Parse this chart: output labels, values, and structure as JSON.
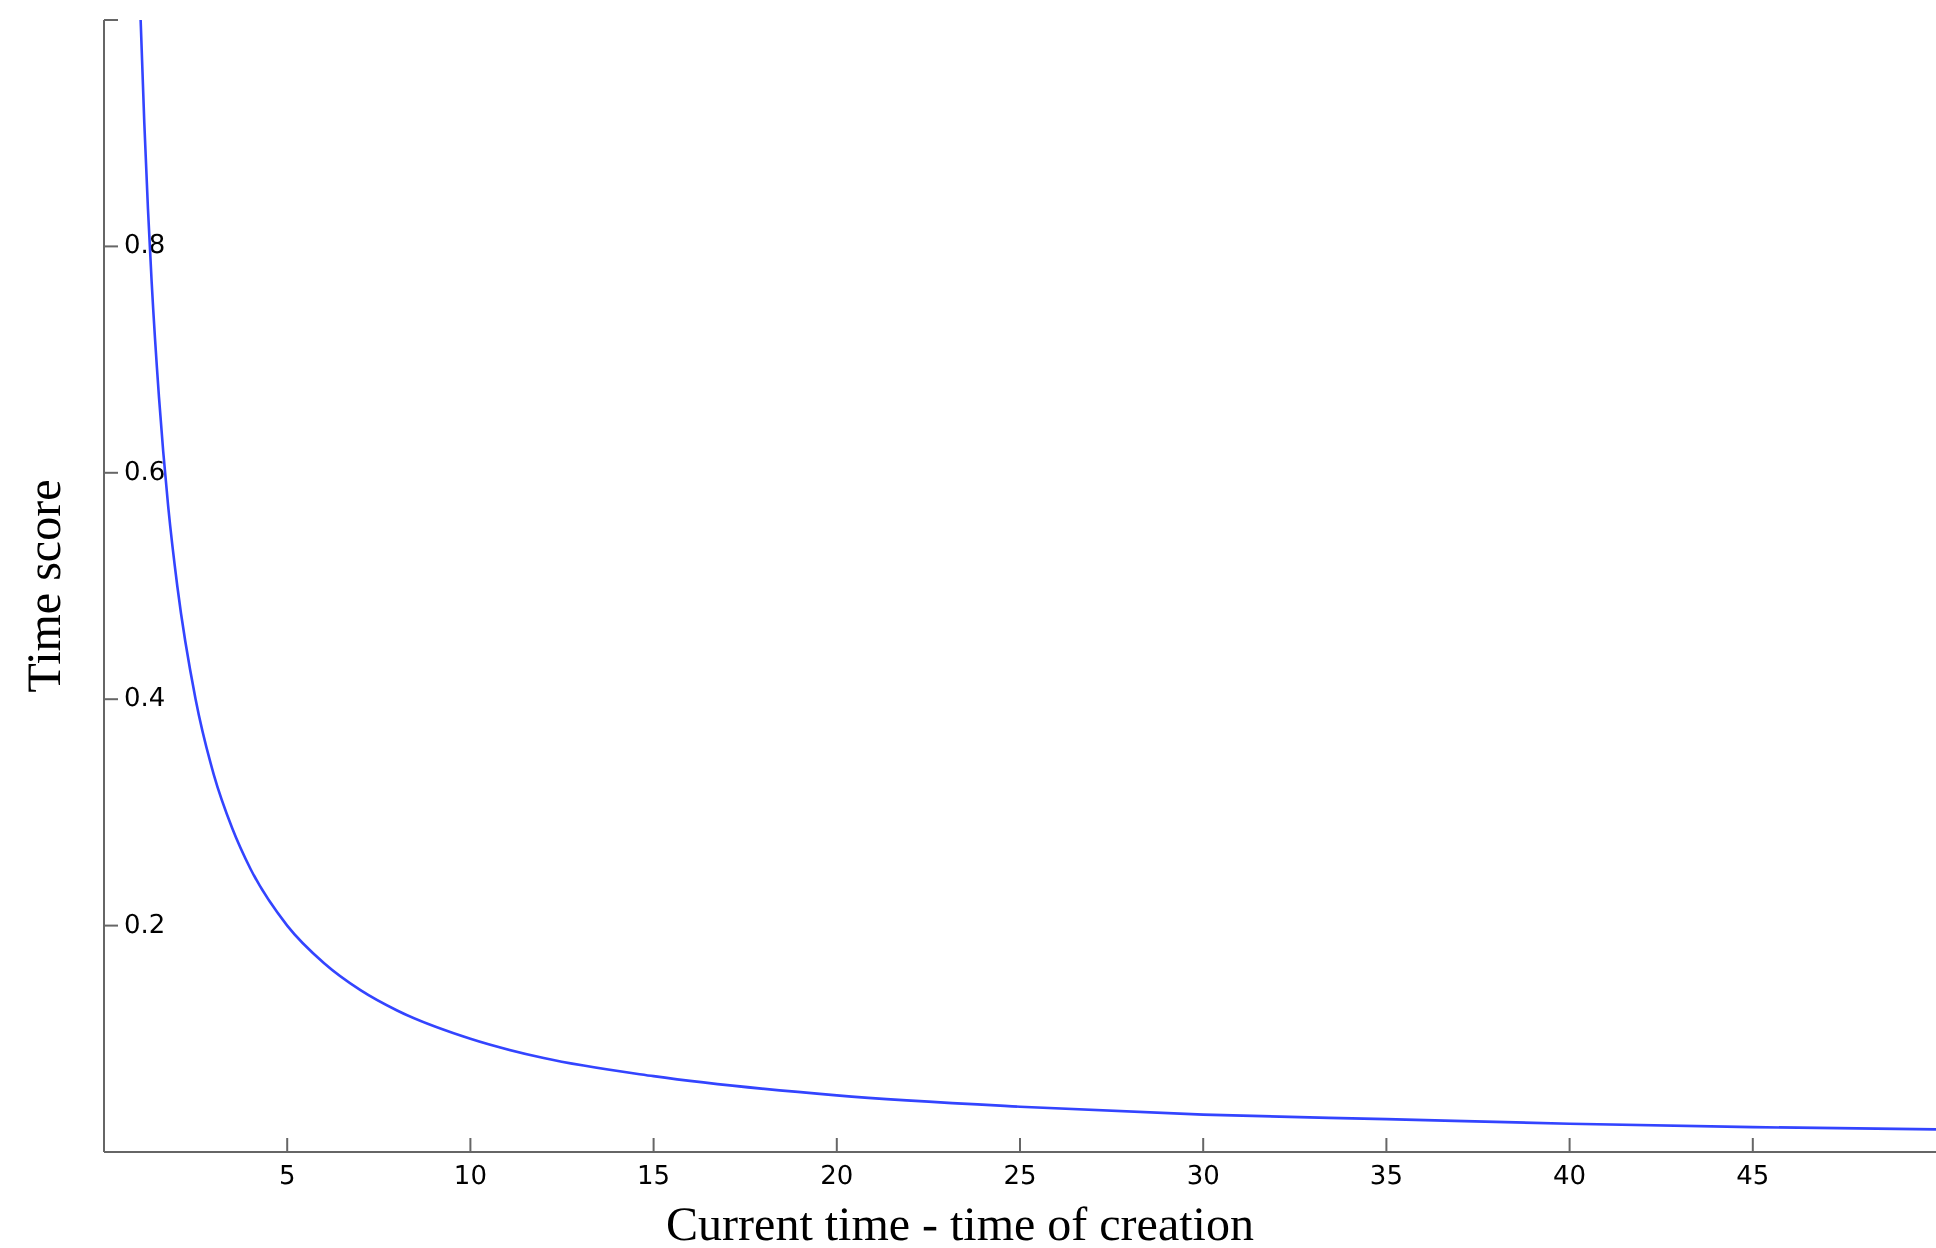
{
  "chart_data": {
    "type": "line",
    "xlabel": "Current time - time of creation",
    "ylabel": "Time score",
    "x": [
      1,
      1.1,
      1.2,
      1.3,
      1.5,
      1.75,
      2,
      2.5,
      3,
      3.5,
      4,
      5,
      6,
      7,
      8,
      10,
      12,
      15,
      20,
      25,
      30,
      35,
      40,
      45,
      50
    ],
    "series": [
      {
        "color": "#3344ff",
        "values": [
          1,
          0.909,
          0.833,
          0.769,
          0.667,
          0.571,
          0.5,
          0.4,
          0.333,
          0.286,
          0.25,
          0.2,
          0.167,
          0.143,
          0.125,
          0.1,
          0.083,
          0.067,
          0.05,
          0.04,
          0.033,
          0.029,
          0.025,
          0.022,
          0.02
        ]
      }
    ],
    "xlim": [
      0,
      50
    ],
    "ylim": [
      0,
      1
    ],
    "xticks": [
      5,
      10,
      15,
      20,
      25,
      30,
      35,
      40,
      45
    ],
    "yticks": [
      0.2,
      0.4,
      0.6,
      0.8,
      {
        "value": 1,
        "label": null
      }
    ],
    "marker": "none",
    "line_style": "solid"
  }
}
